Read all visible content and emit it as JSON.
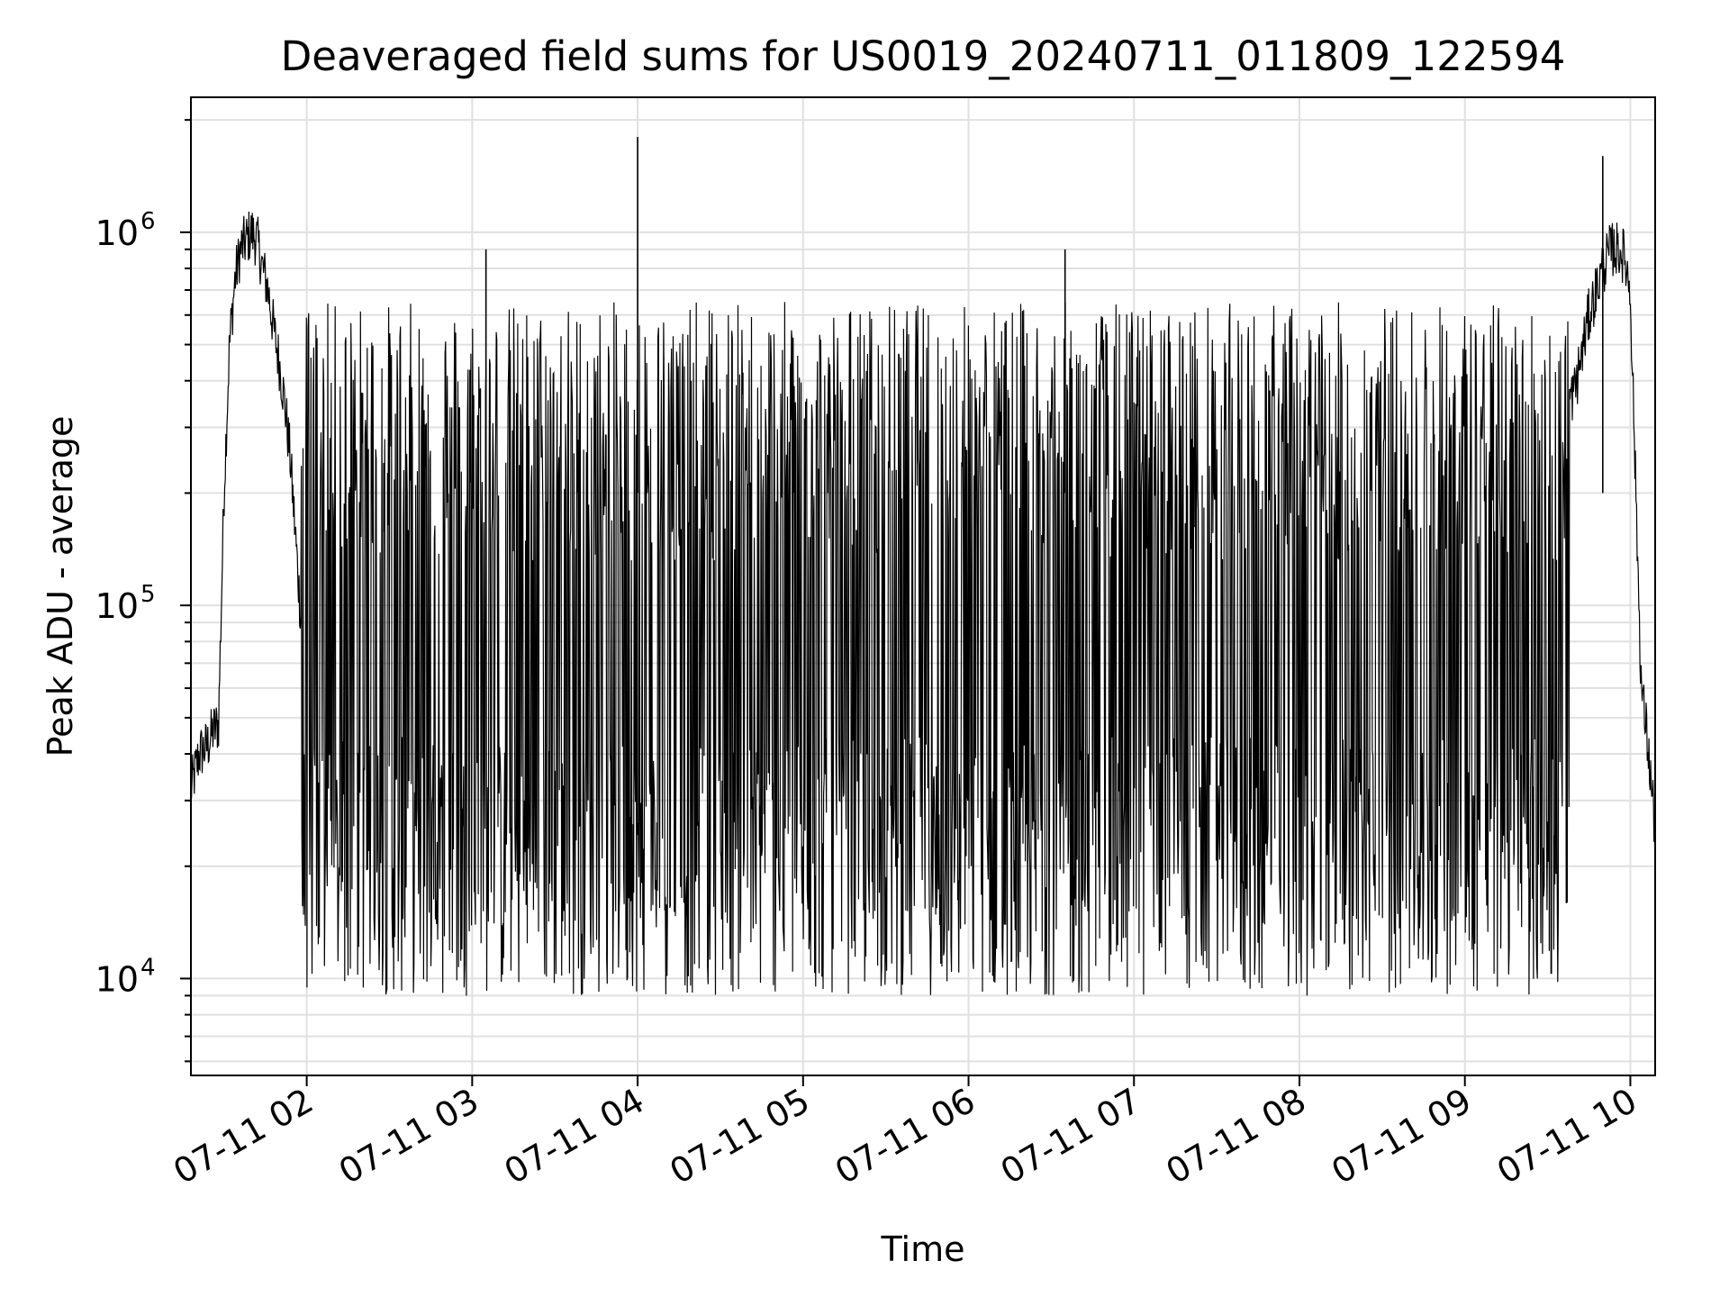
{
  "chart_data": {
    "type": "line",
    "title": "Deaveraged field sums for US0019_20240711_011809_122594",
    "xlabel": "Time",
    "ylabel": "Peak ADU - average",
    "yscale": "log",
    "ylim": [
      5500,
      2300000
    ],
    "xlim": [
      "2024-07-11 01:18:00",
      "2024-07-11 10:09:00"
    ],
    "x_ticks": [
      "07-11 02",
      "07-11 03",
      "07-11 04",
      "07-11 05",
      "07-11 06",
      "07-11 07",
      "07-11 08",
      "07-11 09",
      "07-11 10"
    ],
    "x_tick_times": [
      "2024-07-11 02:00",
      "2024-07-11 03:00",
      "2024-07-11 04:00",
      "2024-07-11 05:00",
      "2024-07-11 06:00",
      "2024-07-11 07:00",
      "2024-07-11 08:00",
      "2024-07-11 09:00",
      "2024-07-11 10:00"
    ],
    "y_ticks": [
      {
        "value": 10000,
        "base": "10",
        "exp": "4"
      },
      {
        "value": 100000,
        "base": "10",
        "exp": "5"
      },
      {
        "value": 1000000,
        "base": "10",
        "exp": "6"
      }
    ],
    "grid": true,
    "line_color": "#000000",
    "series": [
      {
        "x": [
          "2024-07-11 01:18",
          "2024-07-11 01:21",
          "2024-07-11 01:24",
          "2024-07-11 01:26",
          "2024-07-11 01:28",
          "2024-07-11 01:30",
          "2024-07-11 01:32",
          "2024-07-11 01:34",
          "2024-07-11 01:36",
          "2024-07-11 01:38",
          "2024-07-11 01:40",
          "2024-07-11 01:42",
          "2024-07-11 01:44",
          "2024-07-11 01:46",
          "2024-07-11 01:48",
          "2024-07-11 01:50",
          "2024-07-11 01:52",
          "2024-07-11 01:54",
          "2024-07-11 01:56",
          "2024-07-11 01:58",
          "2024-07-11 02:00",
          "2024-07-11 02:03",
          "2024-07-11 02:06",
          "2024-07-11 02:10",
          "2024-07-11 02:15",
          "2024-07-11 02:20",
          "2024-07-11 02:25",
          "2024-07-11 02:30",
          "2024-07-11 02:35",
          "2024-07-11 02:40",
          "2024-07-11 02:45",
          "2024-07-11 02:50",
          "2024-07-11 02:55",
          "2024-07-11 03:00",
          "2024-07-11 03:05",
          "2024-07-11 03:10",
          "2024-07-11 03:15",
          "2024-07-11 03:20",
          "2024-07-11 03:25",
          "2024-07-11 03:30",
          "2024-07-11 03:35",
          "2024-07-11 03:40",
          "2024-07-11 03:45",
          "2024-07-11 03:50",
          "2024-07-11 03:55",
          "2024-07-11 04:00",
          "2024-07-11 04:05",
          "2024-07-11 04:10",
          "2024-07-11 04:20",
          "2024-07-11 04:30",
          "2024-07-11 04:40",
          "2024-07-11 04:50",
          "2024-07-11 05:00",
          "2024-07-11 05:10",
          "2024-07-11 05:20",
          "2024-07-11 05:30",
          "2024-07-11 05:40",
          "2024-07-11 05:50",
          "2024-07-11 06:00",
          "2024-07-11 06:10",
          "2024-07-11 06:20",
          "2024-07-11 06:30",
          "2024-07-11 06:40",
          "2024-07-11 06:50",
          "2024-07-11 07:00",
          "2024-07-11 07:10",
          "2024-07-11 07:20",
          "2024-07-11 07:30",
          "2024-07-11 07:40",
          "2024-07-11 07:50",
          "2024-07-11 08:00",
          "2024-07-11 08:10",
          "2024-07-11 08:20",
          "2024-07-11 08:30",
          "2024-07-11 08:40",
          "2024-07-11 08:50",
          "2024-07-11 09:00",
          "2024-07-11 09:10",
          "2024-07-11 09:20",
          "2024-07-11 09:30",
          "2024-07-11 09:35",
          "2024-07-11 09:40",
          "2024-07-11 09:45",
          "2024-07-11 09:50",
          "2024-07-11 09:53",
          "2024-07-11 09:56",
          "2024-07-11 09:58",
          "2024-07-11 10:00",
          "2024-07-11 10:02",
          "2024-07-11 10:04",
          "2024-07-11 10:06",
          "2024-07-11 10:09"
        ],
        "y": [
          32000,
          40000,
          42000,
          46000,
          48000,
          200000,
          500000,
          750000,
          900000,
          950000,
          1000000,
          950000,
          800000,
          700000,
          550000,
          450000,
          350000,
          250000,
          150000,
          90000,
          70000,
          50000,
          40000,
          35000,
          30000,
          25000,
          30000,
          200000,
          300000,
          350000,
          350000,
          300000,
          300000,
          350000,
          400000,
          400000,
          350000,
          300000,
          300000,
          250000,
          250000,
          250000,
          250000,
          200000,
          150000,
          150000,
          60000,
          50000,
          40000,
          60000,
          55000,
          70000,
          55000,
          45000,
          60000,
          60000,
          50000,
          55000,
          60000,
          55000,
          70000,
          65000,
          60000,
          55000,
          60000,
          80000,
          90000,
          110000,
          140000,
          180000,
          220000,
          230000,
          250000,
          250000,
          260000,
          270000,
          280000,
          300000,
          300000,
          330000,
          320000,
          380000,
          600000,
          800000,
          900000,
          900000,
          850000,
          700000,
          200000,
          60000,
          45000,
          25000
        ]
      }
    ]
  }
}
